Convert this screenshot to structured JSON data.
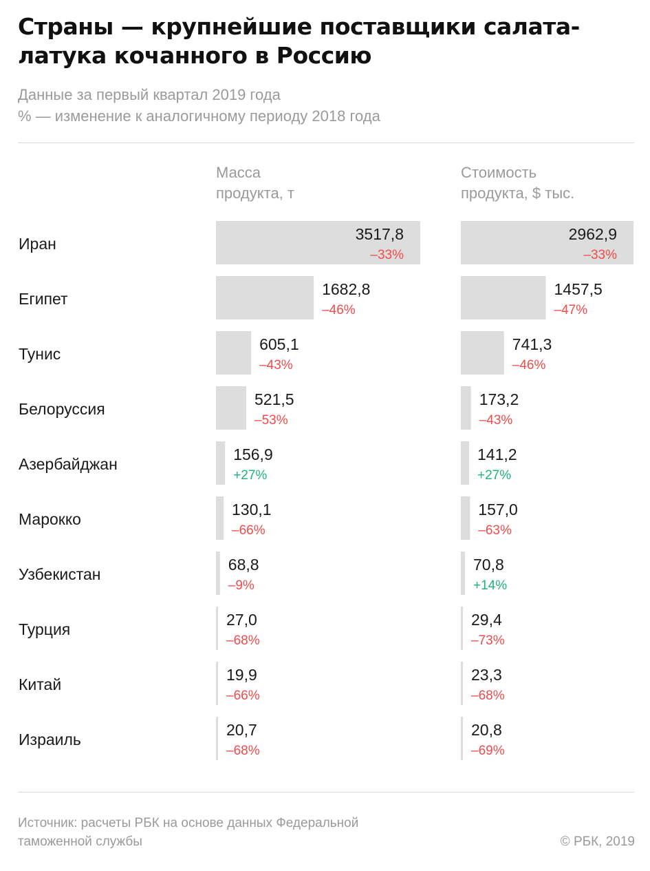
{
  "header": {
    "title": "Страны — крупнейшие поставщики салата-латука кочанного в Россию",
    "subtitle_lines": [
      "Данные за первый квартал 2019 года",
      "% — изменение к аналогичному периоду 2018 года"
    ]
  },
  "colors": {
    "bar": "#dddddd",
    "negative": "#f04a4a",
    "positive": "#1fb37a",
    "text": "#1a1a1a",
    "muted": "#9a9a9a"
  },
  "chart_data": {
    "type": "bar",
    "orientation": "horizontal",
    "categories": [
      "Иран",
      "Египет",
      "Тунис",
      "Белоруссия",
      "Азербайджан",
      "Марокко",
      "Узбекистан",
      "Турция",
      "Китай",
      "Израиль"
    ],
    "series": [
      {
        "name_lines": [
          "Масса",
          "продукта, т"
        ],
        "values": [
          3517.8,
          1682.8,
          605.1,
          521.5,
          156.9,
          130.1,
          68.8,
          27.0,
          19.9,
          20.7
        ],
        "labels": [
          "3517,8",
          "1682,8",
          "605,1",
          "521,5",
          "156,9",
          "130,1",
          "68,8",
          "27,0",
          "19,9",
          "20,7"
        ],
        "change": [
          "–33%",
          "–46%",
          "–43%",
          "–53%",
          "+27%",
          "–66%",
          "–9%",
          "–68%",
          "–66%",
          "–68%"
        ]
      },
      {
        "name_lines": [
          "Стоимость",
          "продукта, $ тыс."
        ],
        "values": [
          2962.9,
          1457.5,
          741.3,
          173.2,
          141.2,
          157.0,
          70.8,
          29.4,
          23.3,
          20.8
        ],
        "labels": [
          "2962,9",
          "1457,5",
          "741,3",
          "173,2",
          "141,2",
          "157,0",
          "70,8",
          "29,4",
          "23,3",
          "20,8"
        ],
        "change": [
          "–33%",
          "–47%",
          "–46%",
          "–43%",
          "+27%",
          "–63%",
          "+14%",
          "–73%",
          "–68%",
          "–69%"
        ]
      }
    ]
  },
  "footer": {
    "source_lines": [
      "Источник: расчеты РБК на основе данных Федеральной",
      "таможенной службы"
    ],
    "copyright": "© РБК, 2019"
  }
}
